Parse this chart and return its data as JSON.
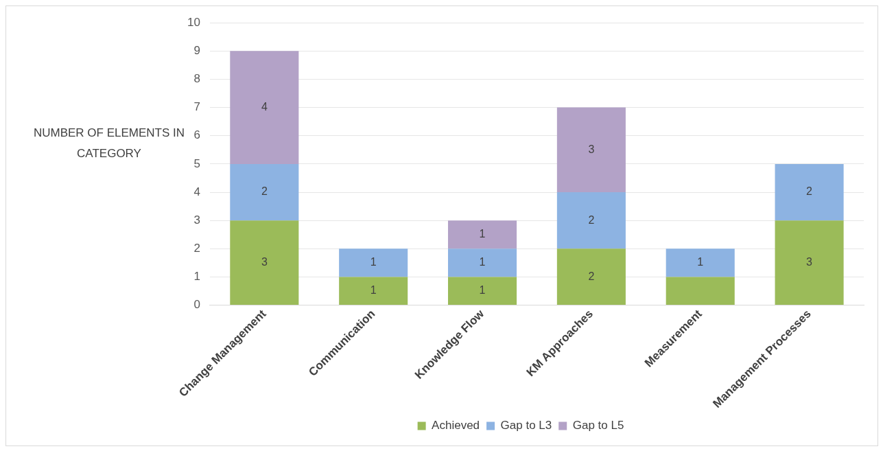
{
  "chart_data": {
    "type": "bar",
    "stacked": true,
    "ylabel": "NUMBER OF ELEMENTS IN CATEGORY",
    "categories": [
      "Change Management",
      "Communication",
      "Knowledge Flow",
      "KM Approaches",
      "Measurement",
      "Management Processes"
    ],
    "series": [
      {
        "name": "Achieved",
        "color": "#9bbb59",
        "values": [
          3,
          1,
          1,
          2,
          1,
          3
        ],
        "value_labels": [
          "3",
          "1",
          "1",
          "2",
          null,
          "3"
        ]
      },
      {
        "name": "Gap to L3",
        "color": "#8db3e2",
        "values": [
          2,
          1,
          1,
          2,
          1,
          2
        ],
        "value_labels": [
          "2",
          "1",
          "1",
          "2",
          "1",
          "2"
        ]
      },
      {
        "name": "Gap to L5",
        "color": "#b3a2c7",
        "values": [
          4,
          null,
          1,
          3,
          null,
          null
        ],
        "value_labels": [
          "4",
          null,
          "1",
          "3",
          null,
          null
        ]
      }
    ],
    "ylim": [
      0,
      10
    ],
    "yticks": [
      0,
      1,
      2,
      3,
      4,
      5,
      6,
      7,
      8,
      9,
      10
    ],
    "grid": "y",
    "legend": "bottom"
  }
}
